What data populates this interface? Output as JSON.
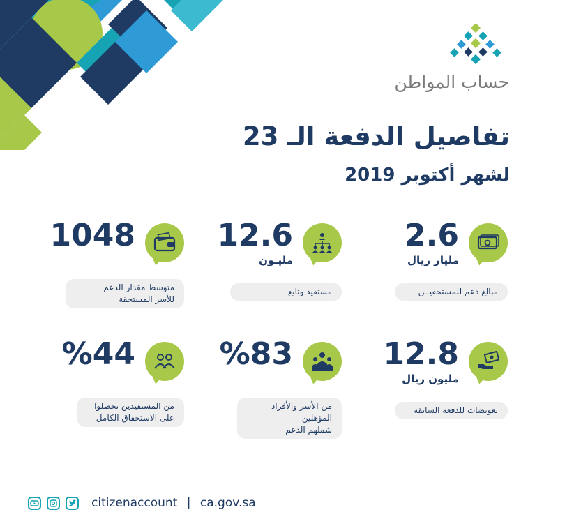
{
  "brand": {
    "name": "حساب المواطن",
    "colors": {
      "navy": "#1f3a63",
      "teal": "#16a3b4",
      "green": "#a8c84a",
      "blue": "#2e9ad6",
      "pill": "#eeeeee"
    }
  },
  "title": "تفاصيل الدفعة الـ 23",
  "subtitle": "لشهر أكتوبر 2019",
  "stats": [
    {
      "value": "2.6",
      "unit": "مليار ريال",
      "description": "مبالغ دعم للمستحقيــن",
      "icon": "money-stack-icon"
    },
    {
      "value": "12.6",
      "unit": "مليـون",
      "description": "مستفيد وتابع",
      "icon": "people-hierarchy-icon"
    },
    {
      "value": "1048",
      "unit": "",
      "description_line1": "متوسط مقدار الدعم",
      "description_line2": "للأسر المستحقة",
      "icon": "wallet-icon"
    },
    {
      "value": "12.8",
      "unit": "مليون ريال",
      "description": "تعويضات للدفعة السابقة",
      "icon": "hand-cash-icon"
    },
    {
      "value": "%83",
      "unit": "",
      "description_line1": "من الأسر والأفراد المؤهلين",
      "description_line2": "شملهم الدعم",
      "icon": "family-icon"
    },
    {
      "value": "%44",
      "unit": "",
      "description_line1": "من المستفيدين تحصلوا",
      "description_line2": "على الاستحقاق الكامل",
      "icon": "two-people-icon"
    }
  ],
  "footer": {
    "handle": "citizenaccount",
    "separator": "|",
    "website": "ca.gov.sa",
    "social_icons": [
      "twitter-icon",
      "instagram-icon",
      "youtube-icon"
    ]
  }
}
